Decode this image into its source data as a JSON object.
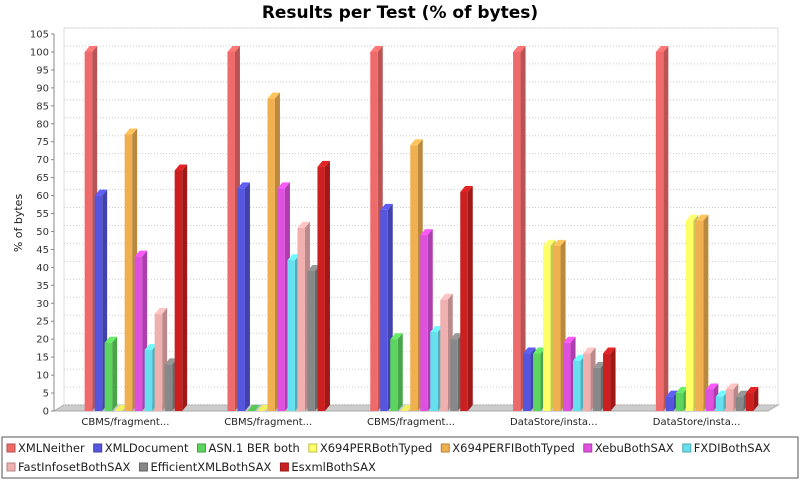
{
  "chart_data": {
    "type": "bar",
    "title": "Results per Test (% of bytes)",
    "xlabel": "",
    "ylabel": "% of bytes",
    "ylim": [
      0,
      105
    ],
    "ytick_step": 5,
    "grid": true,
    "legend_position": "bottom",
    "categories": [
      "CBMS/fragment...",
      "CBMS/fragment...",
      "CBMS/fragment...",
      "DataStore/insta...",
      "DataStore/insta..."
    ],
    "series": [
      {
        "name": "XMLNeither",
        "color": "#ef6a6a",
        "values": [
          100,
          100,
          100,
          100,
          100
        ]
      },
      {
        "name": "XMLDocument",
        "color": "#5555dd",
        "values": [
          60,
          62,
          56,
          16,
          4
        ]
      },
      {
        "name": "ASN.1 BER both",
        "color": "#5dd45d",
        "values": [
          19,
          0,
          20,
          16,
          5
        ]
      },
      {
        "name": "X694PERBothTyped",
        "color": "#ffff66",
        "values": [
          0,
          0,
          0,
          46,
          53
        ]
      },
      {
        "name": "X694PERFIBothTyped",
        "color": "#f0b050",
        "values": [
          77,
          87,
          74,
          46,
          53
        ]
      },
      {
        "name": "XebuBothSAX",
        "color": "#de50de",
        "values": [
          43,
          62,
          49,
          19,
          6
        ]
      },
      {
        "name": "FXDIBothSAX",
        "color": "#66e0ee",
        "values": [
          17,
          42,
          22,
          14,
          4
        ]
      },
      {
        "name": "FastInfosetBothSAX",
        "color": "#f0b0b0",
        "values": [
          27,
          51,
          31,
          16,
          6
        ]
      },
      {
        "name": "EfficientXMLBothSAX",
        "color": "#888888",
        "values": [
          13,
          39,
          20,
          12,
          4
        ]
      },
      {
        "name": "EsxmlBothSAX",
        "color": "#cc2020",
        "values": [
          67,
          68,
          61,
          16,
          5
        ]
      }
    ]
  }
}
